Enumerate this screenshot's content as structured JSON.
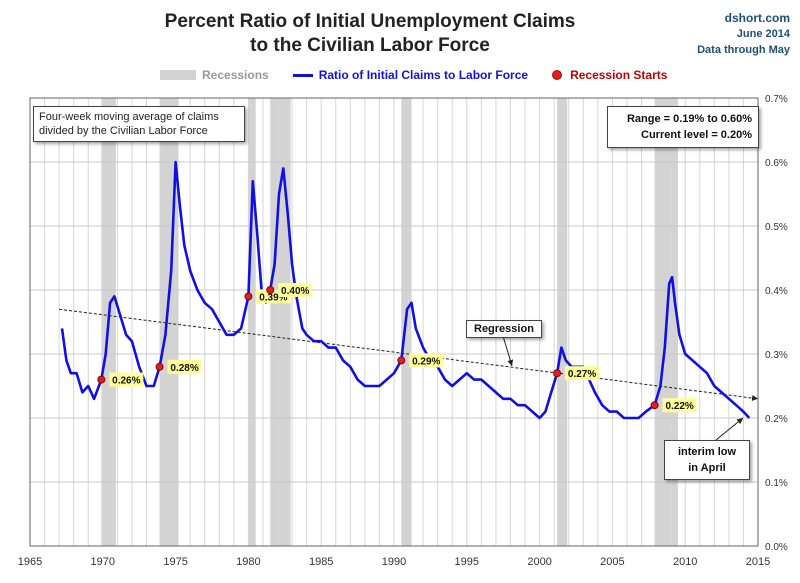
{
  "header": {
    "title_line1": "Percent Ratio of Initial Unemployment Claims",
    "title_line2": "to the Civilian Labor Force",
    "source_site": "dshort.com",
    "source_date": "June 2014",
    "source_note": "Data through May"
  },
  "legend": {
    "recessions": "Recessions",
    "series": "Ratio of Initial Claims to Labor Force",
    "recession_starts": "Recession Starts"
  },
  "annotations": {
    "note_line1": "Four-week moving average of claims",
    "note_line2": "divided by the Civilian Labor Force",
    "range": "Range = 0.19% to 0.60%",
    "current": "Current level = 0.20%",
    "regression": "Regression",
    "interim_line1": "interim low",
    "interim_line2": "in April"
  },
  "colors": {
    "series": "#1010e6",
    "recession_band": "#d3d3d3",
    "marker": "#e02020",
    "marker_label_bg": "#ffff99"
  },
  "chart_data": {
    "type": "line",
    "title": "Percent Ratio of Initial Unemployment Claims to the Civilian Labor Force",
    "xlabel": "",
    "ylabel": "",
    "xlim": [
      1965,
      2015
    ],
    "ylim": [
      0,
      0.7
    ],
    "x_ticks": [
      1965,
      1970,
      1975,
      1980,
      1985,
      1990,
      1995,
      2000,
      2005,
      2010,
      2015
    ],
    "x_tick_labels": [
      "1965",
      "1970",
      "1975",
      "1980",
      "1985",
      "1990",
      "1995",
      "2000",
      "2005",
      "2010",
      "2015"
    ],
    "y_ticks": [
      0,
      0.1,
      0.2,
      0.3,
      0.4,
      0.5,
      0.6,
      0.7
    ],
    "y_tick_labels": [
      "0.0%",
      "0.1%",
      "0.2%",
      "0.3%",
      "0.4%",
      "0.5%",
      "0.6%",
      "0.7%"
    ],
    "grid": true,
    "recessions": [
      [
        1969.9,
        1970.9
      ],
      [
        1973.9,
        1975.2
      ],
      [
        1980.0,
        1980.5
      ],
      [
        1981.5,
        1982.9
      ],
      [
        1990.5,
        1991.2
      ],
      [
        2001.2,
        2001.9
      ],
      [
        2007.9,
        2009.5
      ]
    ],
    "regression": {
      "x": [
        1967,
        2015
      ],
      "y": [
        0.37,
        0.23
      ]
    },
    "recession_starts": [
      {
        "x": 1969.9,
        "y": 0.26,
        "label": "0.26%"
      },
      {
        "x": 1973.9,
        "y": 0.28,
        "label": "0.28%"
      },
      {
        "x": 1980.0,
        "y": 0.39,
        "label": "0.39%"
      },
      {
        "x": 1981.5,
        "y": 0.4,
        "label": "0.40%"
      },
      {
        "x": 1990.5,
        "y": 0.29,
        "label": "0.29%"
      },
      {
        "x": 2001.2,
        "y": 0.27,
        "label": "0.27%"
      },
      {
        "x": 2007.9,
        "y": 0.22,
        "label": "0.22%"
      }
    ],
    "series": [
      {
        "name": "Ratio of Initial Claims to Labor Force",
        "x": [
          1967.2,
          1967.5,
          1967.8,
          1968.2,
          1968.6,
          1969.0,
          1969.4,
          1969.9,
          1970.2,
          1970.5,
          1970.8,
          1971.2,
          1971.6,
          1972.0,
          1972.5,
          1973.0,
          1973.5,
          1973.9,
          1974.3,
          1974.7,
          1975.0,
          1975.3,
          1975.6,
          1976.0,
          1976.5,
          1977.0,
          1977.5,
          1978.0,
          1978.5,
          1979.0,
          1979.5,
          1980.0,
          1980.3,
          1980.6,
          1980.9,
          1981.2,
          1981.5,
          1981.8,
          1982.1,
          1982.4,
          1982.7,
          1983.0,
          1983.3,
          1983.7,
          1984.0,
          1984.5,
          1985.0,
          1985.5,
          1986.0,
          1986.5,
          1987.0,
          1987.5,
          1988.0,
          1988.5,
          1989.0,
          1989.5,
          1990.0,
          1990.5,
          1990.9,
          1991.2,
          1991.5,
          1992.0,
          1992.5,
          1993.0,
          1993.5,
          1994.0,
          1994.5,
          1995.0,
          1995.5,
          1996.0,
          1996.5,
          1997.0,
          1997.5,
          1998.0,
          1998.5,
          1999.0,
          1999.5,
          2000.0,
          2000.4,
          2000.8,
          2001.2,
          2001.5,
          2001.8,
          2002.2,
          2002.6,
          2003.0,
          2003.4,
          2003.8,
          2004.3,
          2004.8,
          2005.3,
          2005.8,
          2006.3,
          2006.8,
          2007.3,
          2007.9,
          2008.3,
          2008.6,
          2008.9,
          2009.1,
          2009.3,
          2009.6,
          2010.0,
          2010.5,
          2011.0,
          2011.5,
          2012.0,
          2012.5,
          2013.0,
          2013.5,
          2014.0,
          2014.4
        ],
        "values": [
          0.34,
          0.29,
          0.27,
          0.27,
          0.24,
          0.25,
          0.23,
          0.26,
          0.3,
          0.38,
          0.39,
          0.36,
          0.33,
          0.32,
          0.28,
          0.25,
          0.25,
          0.28,
          0.33,
          0.43,
          0.6,
          0.53,
          0.47,
          0.43,
          0.4,
          0.38,
          0.37,
          0.35,
          0.33,
          0.33,
          0.34,
          0.39,
          0.57,
          0.49,
          0.4,
          0.38,
          0.4,
          0.44,
          0.55,
          0.59,
          0.52,
          0.44,
          0.39,
          0.34,
          0.33,
          0.32,
          0.32,
          0.31,
          0.31,
          0.29,
          0.28,
          0.26,
          0.25,
          0.25,
          0.25,
          0.26,
          0.27,
          0.29,
          0.37,
          0.38,
          0.34,
          0.31,
          0.29,
          0.28,
          0.26,
          0.25,
          0.26,
          0.27,
          0.26,
          0.26,
          0.25,
          0.24,
          0.23,
          0.23,
          0.22,
          0.22,
          0.21,
          0.2,
          0.21,
          0.24,
          0.27,
          0.31,
          0.29,
          0.28,
          0.28,
          0.28,
          0.26,
          0.24,
          0.22,
          0.21,
          0.21,
          0.2,
          0.2,
          0.2,
          0.21,
          0.22,
          0.25,
          0.31,
          0.41,
          0.42,
          0.38,
          0.33,
          0.3,
          0.29,
          0.28,
          0.27,
          0.25,
          0.24,
          0.23,
          0.22,
          0.21,
          0.2
        ]
      }
    ]
  }
}
